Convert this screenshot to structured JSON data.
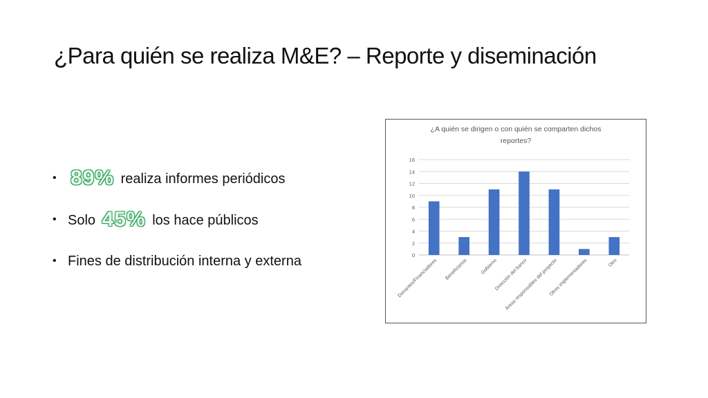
{
  "slide": {
    "title": "¿Para quién se realiza M&E? – Reporte y diseminación",
    "bullets": [
      {
        "prefix": "",
        "highlight": "89%",
        "suffix": "realiza informes periódicos"
      },
      {
        "prefix": "Solo",
        "highlight": "45%",
        "suffix": "los hace públicos"
      },
      {
        "prefix": "",
        "highlight": "",
        "suffix": "Fines de distribución interna y externa"
      }
    ],
    "bullet_glyph": "•"
  },
  "chart_data": {
    "type": "bar",
    "title": "¿A quién se dirigen o con quién se comparten dichos reportes?",
    "title_lines": [
      "¿A quién se dirigen o con quién se comparten dichos",
      "reportes?"
    ],
    "categories": [
      "Donantes/Financiadores",
      "Beneficiarios",
      "Gobierno",
      "Dirección del banco",
      "Áreas responsables del proyecto",
      "Otros implementadores",
      "Otro"
    ],
    "values": [
      9,
      3,
      11,
      14,
      11,
      1,
      3
    ],
    "ylim": [
      0,
      16
    ],
    "yticks": [
      0,
      2,
      4,
      6,
      8,
      10,
      12,
      14,
      16
    ],
    "grid": true,
    "bar_color": "#4472c4",
    "xlabel": "",
    "ylabel": ""
  }
}
